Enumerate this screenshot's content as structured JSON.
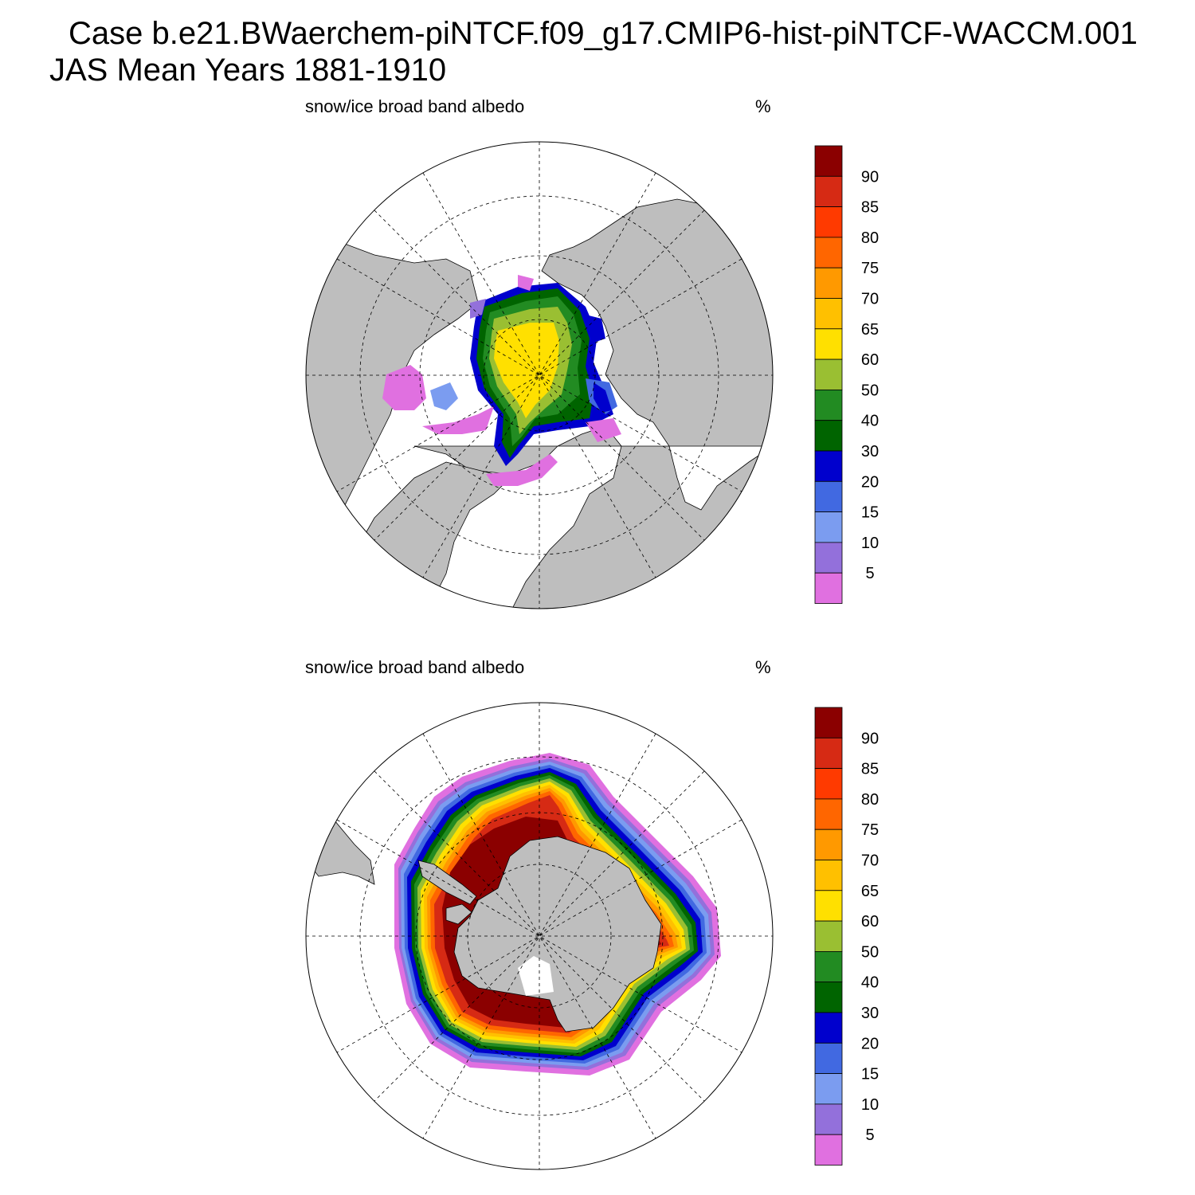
{
  "header": {
    "line1": "Case b.e21.BWaerchem-piNTCF.f09_g17.CMIP6-hist-piNTCF-WACCM.001",
    "line2": "JAS Mean   Years 1881-1910"
  },
  "panels": [
    {
      "id": "north",
      "hemisphere": "Northern",
      "title": "snow/ice broad band albedo",
      "units": "%"
    },
    {
      "id": "south",
      "hemisphere": "Southern",
      "title": "snow/ice broad band albedo",
      "units": "%"
    }
  ],
  "colorbar": {
    "levels": [
      "90",
      "85",
      "80",
      "75",
      "70",
      "65",
      "60",
      "50",
      "40",
      "30",
      "20",
      "15",
      "10",
      "5"
    ],
    "colors": [
      "#8b0000",
      "#d62a14",
      "#ff3a00",
      "#ff6600",
      "#ff9900",
      "#ffc000",
      "#ffe000",
      "#9abf32",
      "#228b22",
      "#006400",
      "#0000cd",
      "#4169e1",
      "#7b9cf0",
      "#9370db",
      "#e070e0"
    ]
  },
  "map_colors": {
    "land": "#bebebe",
    "missing": "#ffffff"
  }
}
